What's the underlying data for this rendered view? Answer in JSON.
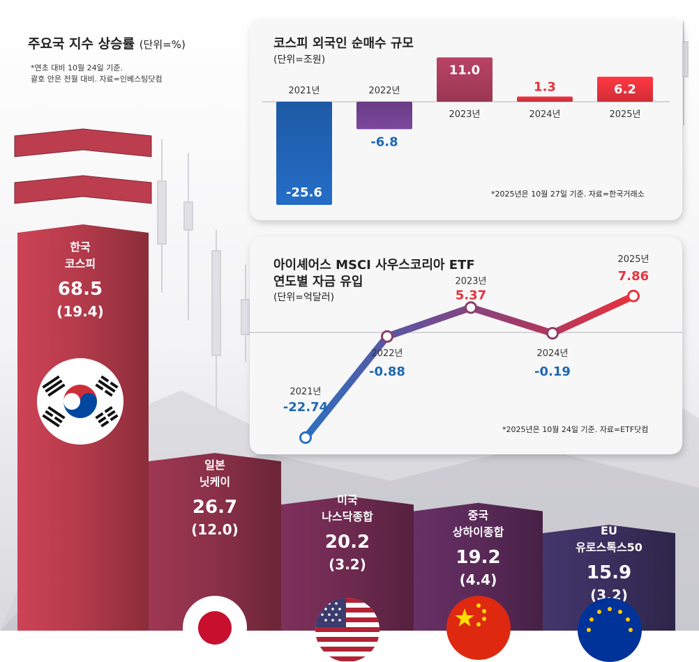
{
  "main": {
    "title": "주요국 지수 상승률",
    "unit": "(단위=%)",
    "note": "*연초 대비 10월 24일 기준.\n괄호 안은 전월 대비. 자료=인베스팅닷컴"
  },
  "panel1": {
    "title": "코스피 외국인 순매수 규모",
    "unit": "(단위=조원)",
    "note": "*2025년은 10월 27일 기준. 자료=한국거래소"
  },
  "panel2": {
    "title_line1": "아이셰어스 MSCI 사우스코리아 ETF",
    "title_line2": "연도별 자금 유입",
    "unit": "(단위=억달러)",
    "note": "*2025년은 10월 24일 기준. 자료=ETF닷컴"
  },
  "colors": {
    "korea": "#b23a4a",
    "japan": "#8a3048",
    "us": "#6e2a50",
    "china": "#5a2a58",
    "eu": "#3a2f5e",
    "positive": "#e8323c",
    "negative": "#1e68b2"
  },
  "chart_data": [
    {
      "type": "bar",
      "title": "주요국 지수 상승률",
      "unit": "%",
      "categories": [
        "한국 코스피",
        "일본 닛케이",
        "미국 나스닥종합",
        "중국 상하이종합",
        "EU 유로스톡스50"
      ],
      "country": [
        "한국",
        "일본",
        "미국",
        "중국",
        "EU"
      ],
      "index": [
        "코스피",
        "닛케이",
        "나스닥종합",
        "상하이종합",
        "유로스톡스50"
      ],
      "values": [
        68.5,
        26.7,
        20.2,
        19.2,
        15.9
      ],
      "value_labels": [
        "68.5",
        "26.7",
        "20.2",
        "19.2",
        "15.9"
      ],
      "secondary_values": [
        19.4,
        12.0,
        3.2,
        4.4,
        3.2
      ],
      "secondary_labels": [
        "(19.4)",
        "(12.0)",
        "(3.2)",
        "(4.4)",
        "(3.2)"
      ],
      "flags": [
        "korea-flag",
        "japan-flag",
        "us-flag",
        "china-flag",
        "eu-flag"
      ]
    },
    {
      "type": "bar",
      "title": "코스피 외국인 순매수 규모",
      "unit": "조원",
      "categories": [
        "2021년",
        "2022년",
        "2023년",
        "2024년",
        "2025년"
      ],
      "values": [
        -25.6,
        -6.8,
        11.0,
        1.3,
        6.2
      ],
      "value_labels": [
        "-25.6",
        "-6.8",
        "11.0",
        "1.3",
        "6.2"
      ],
      "ylim": [
        -25.6,
        11.0
      ]
    },
    {
      "type": "line",
      "title": "아이셰어스 MSCI 사우스코리아 ETF 연도별 자금 유입",
      "unit": "억달러",
      "categories": [
        "2021년",
        "2022년",
        "2023년",
        "2024년",
        "2025년"
      ],
      "values": [
        -22.74,
        -0.88,
        5.37,
        -0.19,
        7.86
      ],
      "value_labels": [
        "-22.74",
        "-0.88",
        "5.37",
        "-0.19",
        "7.86"
      ],
      "ylim": [
        -22.74,
        7.86
      ]
    }
  ]
}
